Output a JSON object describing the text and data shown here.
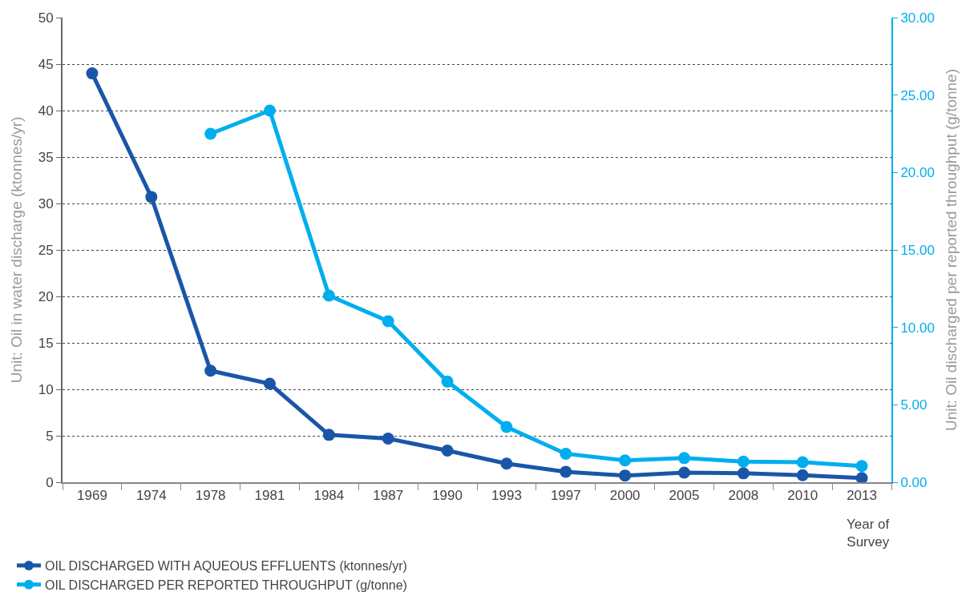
{
  "chart_data": {
    "type": "line",
    "xlabel": "Year of\nSurvey",
    "ylabel": "Unit: Oil in water discharge (ktonnes/yr)",
    "y2label": "Unit: Oil discharged per reported throughput (g/tonne)",
    "categories": [
      "1969",
      "1974",
      "1978",
      "1981",
      "1984",
      "1987",
      "1990",
      "1993",
      "1997",
      "2000",
      "2005",
      "2008",
      "2010",
      "2013"
    ],
    "series": [
      {
        "name": "OIL DISCHARGED WITH AQUEOUS EFFLUENTS (ktonnes/yr)",
        "color": "#1a56a8",
        "values": [
          44,
          30.7,
          12.0,
          10.6,
          5.1,
          4.7,
          3.4,
          2.0,
          1.13,
          0.72,
          1.03,
          0.96,
          0.75,
          0.45
        ]
      },
      {
        "name": "OIL DISCHARGED PER REPORTED THROUGHPUT (g/tonne)",
        "color": "#00aeef",
        "axis": "y2",
        "values": [
          null,
          null,
          22.5,
          24.0,
          12.05,
          10.4,
          6.5,
          3.57,
          1.84,
          1.41,
          1.56,
          1.33,
          1.29,
          1.05
        ]
      }
    ],
    "ylim": [
      0,
      50
    ],
    "yticks": [
      0,
      5,
      10,
      15,
      20,
      25,
      30,
      35,
      40,
      45,
      50
    ],
    "y2lim": [
      0,
      30
    ],
    "y2ticks": [
      {
        "value": 0,
        "label": "0.00"
      },
      {
        "value": 5,
        "label": "5.00"
      },
      {
        "value": 10,
        "label": "10.00"
      },
      {
        "value": 15,
        "label": "15.00"
      },
      {
        "value": 20,
        "label": "20.00"
      },
      {
        "value": 25,
        "label": "25.00"
      },
      {
        "value": 30,
        "label": "30.00"
      }
    ],
    "grid": "y",
    "legend": "bottom left",
    "marker": "circle",
    "line_style": "solid"
  }
}
